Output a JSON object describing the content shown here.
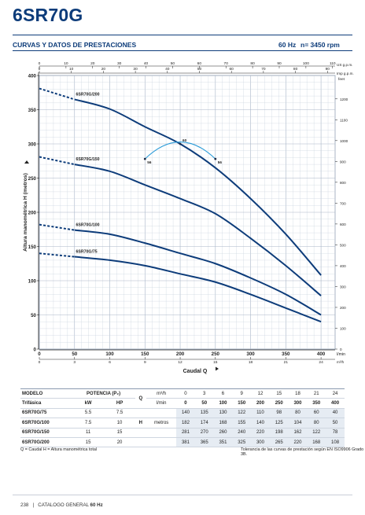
{
  "header": {
    "title": "6SR70G",
    "section_title": "CURVAS Y DATOS DE PRESTACIONES",
    "frequency": "60 Hz",
    "speed": "n= 3450 rpm"
  },
  "chart_data": {
    "type": "line",
    "ylabel": "Altura manométrica H (metros)",
    "xlabel": "Caudal Q",
    "ylim": [
      0,
      400
    ],
    "xlim": [
      0,
      420
    ],
    "grid": true,
    "primary_x": {
      "unit": "l/min",
      "ticks": [
        0,
        50,
        100,
        150,
        200,
        250,
        300,
        350,
        400
      ]
    },
    "secondary_x_m3h": {
      "unit": "m³/h",
      "ticks": [
        0,
        3,
        6,
        9,
        12,
        15,
        18,
        21,
        24
      ]
    },
    "top_x_us": {
      "unit": "US g.p.m.",
      "ticks": [
        0,
        10,
        20,
        30,
        40,
        50,
        60,
        70,
        80,
        90,
        100,
        110
      ]
    },
    "top_x_imp": {
      "unit": "Imp g.p.m.",
      "ticks": [
        0,
        10,
        20,
        30,
        40,
        50,
        60,
        70,
        80,
        90
      ]
    },
    "right_y_feet": {
      "unit": "feet",
      "ticks": [
        0,
        100,
        200,
        300,
        400,
        500,
        600,
        700,
        800,
        900,
        1000,
        1100,
        1200
      ]
    },
    "left_y_ticks": [
      0,
      50,
      100,
      150,
      200,
      250,
      300,
      350,
      400
    ],
    "series": [
      {
        "name": "6SR70G/200",
        "x": [
          0,
          50,
          100,
          150,
          200,
          250,
          300,
          350,
          400
        ],
        "y": [
          381,
          365,
          351,
          325,
          300,
          265,
          220,
          168,
          108
        ]
      },
      {
        "name": "6SR70G/150",
        "x": [
          0,
          50,
          100,
          150,
          200,
          250,
          300,
          350,
          400
        ],
        "y": [
          281,
          270,
          260,
          240,
          220,
          198,
          162,
          122,
          78
        ]
      },
      {
        "name": "6SR70G/100",
        "x": [
          0,
          50,
          100,
          150,
          200,
          250,
          300,
          350,
          400
        ],
        "y": [
          182,
          174,
          168,
          155,
          140,
          125,
          104,
          80,
          50
        ]
      },
      {
        "name": "6SR70G/75",
        "x": [
          0,
          50,
          100,
          150,
          200,
          250,
          300,
          350,
          400
        ],
        "y": [
          140,
          135,
          130,
          122,
          110,
          98,
          80,
          60,
          40
        ]
      }
    ],
    "efficiency_curve": {
      "x": [
        150,
        200,
        250
      ],
      "y": [
        278,
        300,
        278
      ]
    },
    "efficiency_labels": [
      "56",
      "60",
      "56"
    ]
  },
  "table": {
    "headers": {
      "modelo": "MODELO",
      "potencia": "POTENCIA (P₂)",
      "trifasica": "Trifásica",
      "kw": "kW",
      "hp": "HP",
      "q_symbol": "Q",
      "m3h_unit": "m³/h",
      "lmin_unit": "l/min",
      "h_symbol": "H",
      "metros": "metros"
    },
    "m3h": [
      "0",
      "3",
      "6",
      "9",
      "12",
      "15",
      "18",
      "21",
      "24"
    ],
    "lmin": [
      "0",
      "50",
      "100",
      "150",
      "200",
      "250",
      "300",
      "350",
      "400"
    ],
    "rows": [
      {
        "model": "6SR70G/75",
        "kw": "5.5",
        "hp": "7.5",
        "h": [
          "140",
          "135",
          "130",
          "122",
          "110",
          "98",
          "80",
          "60",
          "40"
        ]
      },
      {
        "model": "6SR70G/100",
        "kw": "7.5",
        "hp": "10",
        "h": [
          "182",
          "174",
          "168",
          "155",
          "140",
          "125",
          "104",
          "80",
          "50"
        ]
      },
      {
        "model": "6SR70G/150",
        "kw": "11",
        "hp": "15",
        "h": [
          "281",
          "270",
          "260",
          "240",
          "220",
          "198",
          "162",
          "122",
          "78"
        ]
      },
      {
        "model": "6SR70G/200",
        "kw": "15",
        "hp": "20",
        "h": [
          "381",
          "365",
          "351",
          "325",
          "300",
          "265",
          "220",
          "168",
          "108"
        ]
      }
    ]
  },
  "footnotes": {
    "left": "Q = Caudal   H = Altura manométrica total",
    "right": "Tolerancia de las curvas de prestación según EN ISO9906 Grado 3B."
  },
  "footer": {
    "page": "238",
    "separator": "|",
    "catalog": "CATALOGO GENERAL",
    "catalog_bold": "60 Hz"
  },
  "colors": {
    "brand": "#0d3c7a",
    "curve": "#0d3c7a",
    "efficiency": "#2a9bd8",
    "grid": "#c9d2de"
  }
}
